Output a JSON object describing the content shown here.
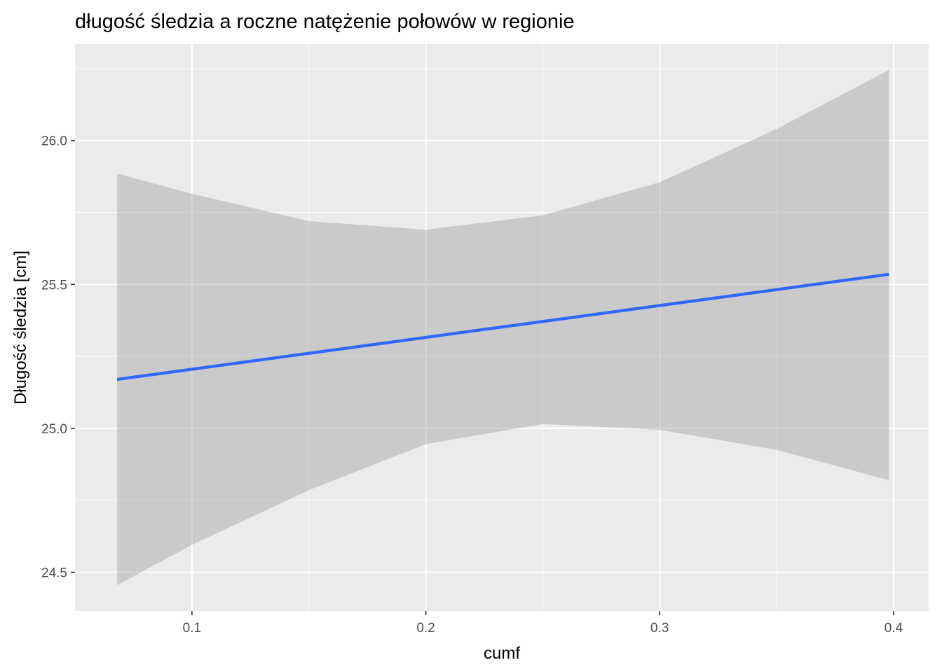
{
  "chart_data": {
    "type": "line",
    "title": "długość śledzia a roczne natężenie połowów w regionie",
    "xlabel": "cumf",
    "ylabel": "Długość śledzia [cm]",
    "xlim": [
      0.05,
      0.415
    ],
    "ylim": [
      24.365,
      26.335
    ],
    "x_ticks": [
      0.1,
      0.2,
      0.3,
      0.4
    ],
    "x_tick_labels": [
      "0.1",
      "0.2",
      "0.3",
      "0.4"
    ],
    "y_ticks": [
      24.5,
      25.0,
      25.5,
      26.0
    ],
    "y_tick_labels": [
      "24.5",
      "25.0",
      "25.5",
      "26.0"
    ],
    "grid": true,
    "background": "#ebebeb",
    "grid_color": "#ffffff",
    "series": [
      {
        "kind": "fit-line",
        "color": "#3366ff",
        "x": [
          0.068,
          0.398
        ],
        "y": [
          25.17,
          25.535
        ]
      },
      {
        "kind": "confidence-band",
        "color": "#999999",
        "x": [
          0.068,
          0.1,
          0.15,
          0.2,
          0.25,
          0.3,
          0.35,
          0.398
        ],
        "upper": [
          25.885,
          25.815,
          25.72,
          25.69,
          25.74,
          25.855,
          26.04,
          26.245
        ],
        "lower": [
          24.455,
          24.595,
          24.785,
          24.945,
          25.015,
          24.995,
          24.925,
          24.82
        ]
      }
    ]
  }
}
